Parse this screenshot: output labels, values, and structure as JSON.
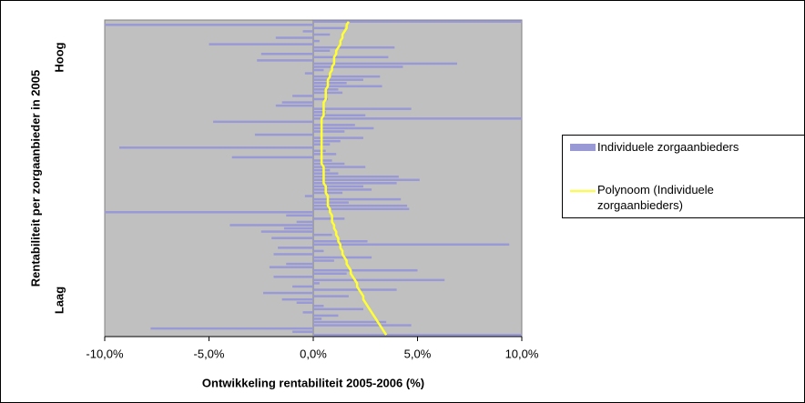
{
  "chart_data": {
    "type": "barh",
    "xlabel": "Ontwikkeling rentabiliteit 2005-2006 (%)",
    "ylabel": "Rentabiliteit per zorgaanbieder in 2005",
    "annotations": [
      "Hoog",
      "Laag"
    ],
    "xlim": [
      -10,
      10
    ],
    "xticks": [
      {
        "value": -10,
        "label": "-10,0%"
      },
      {
        "value": -5,
        "label": "-5,0%"
      },
      {
        "value": 0,
        "label": "0,0%"
      },
      {
        "value": 5,
        "label": "5,0%"
      },
      {
        "value": 10,
        "label": "10,0%"
      }
    ],
    "plot_background": "#c0c0c0",
    "series": [
      {
        "name": "Individuele zorgaanbieders",
        "type": "barh",
        "color": "#9999d6",
        "values": [
          10,
          -10,
          1.5,
          -0.5,
          0.8,
          -1.8,
          0.3,
          -5,
          3.9,
          0.8,
          -2.5,
          3.6,
          -2.7,
          6.9,
          4.3,
          0.5,
          -0.4,
          3.2,
          2.4,
          1.6,
          3.3,
          1.2,
          1.4,
          -1,
          0.7,
          -1.5,
          -1.8,
          4.7,
          0.6,
          2.5,
          10,
          -4.8,
          2.0,
          2.9,
          1.5,
          -2.8,
          2.4,
          1.3,
          0.8,
          -9.3,
          0.6,
          1.1,
          -3.9,
          0.9,
          1.5,
          2.5,
          0.8,
          1.2,
          4.1,
          5.1,
          4.0,
          2.4,
          2.8,
          1.4,
          -0.4,
          4.2,
          1.7,
          4.5,
          4.6,
          -10,
          -1.3,
          1.5,
          -0.8,
          -4.0,
          -1.4,
          -2.5,
          0.9,
          -2.0,
          2.6,
          9.4,
          -1.7,
          0.5,
          -1.9,
          2.8,
          1.0,
          -1.3,
          -2.1,
          5.0,
          1.6,
          -1.9,
          6.3,
          0.3,
          -1.0,
          4.0,
          -2.4,
          1.7,
          -1.5,
          -0.8,
          0.5,
          2.4,
          -0.5,
          1.2,
          0.4,
          3.5,
          4.7,
          -7.8,
          -1.0,
          10
        ]
      },
      {
        "name": "Polynoom (Individuele zorgaanbieders)",
        "type": "line",
        "color": "#ffff33",
        "values": [
          1.7,
          1.6,
          1.6,
          1.5,
          1.4,
          1.4,
          1.3,
          1.3,
          1.2,
          1.1,
          1.1,
          1.0,
          1.0,
          1.0,
          0.9,
          0.9,
          0.8,
          0.8,
          0.7,
          0.7,
          0.7,
          0.6,
          0.6,
          0.6,
          0.6,
          0.5,
          0.5,
          0.5,
          0.5,
          0.5,
          0.4,
          0.4,
          0.4,
          0.4,
          0.4,
          0.4,
          0.4,
          0.4,
          0.4,
          0.4,
          0.4,
          0.4,
          0.4,
          0.4,
          0.4,
          0.5,
          0.5,
          0.5,
          0.5,
          0.5,
          0.5,
          0.6,
          0.6,
          0.6,
          0.7,
          0.7,
          0.7,
          0.7,
          0.8,
          0.8,
          0.9,
          0.9,
          0.9,
          1.0,
          1.0,
          1.1,
          1.1,
          1.2,
          1.2,
          1.3,
          1.3,
          1.4,
          1.4,
          1.5,
          1.6,
          1.6,
          1.7,
          1.8,
          1.8,
          1.9,
          2.0,
          2.1,
          2.1,
          2.2,
          2.3,
          2.4,
          2.4,
          2.5,
          2.6,
          2.7,
          2.8,
          2.9,
          3.0,
          3.1,
          3.2,
          3.3,
          3.4,
          3.5
        ]
      }
    ]
  }
}
